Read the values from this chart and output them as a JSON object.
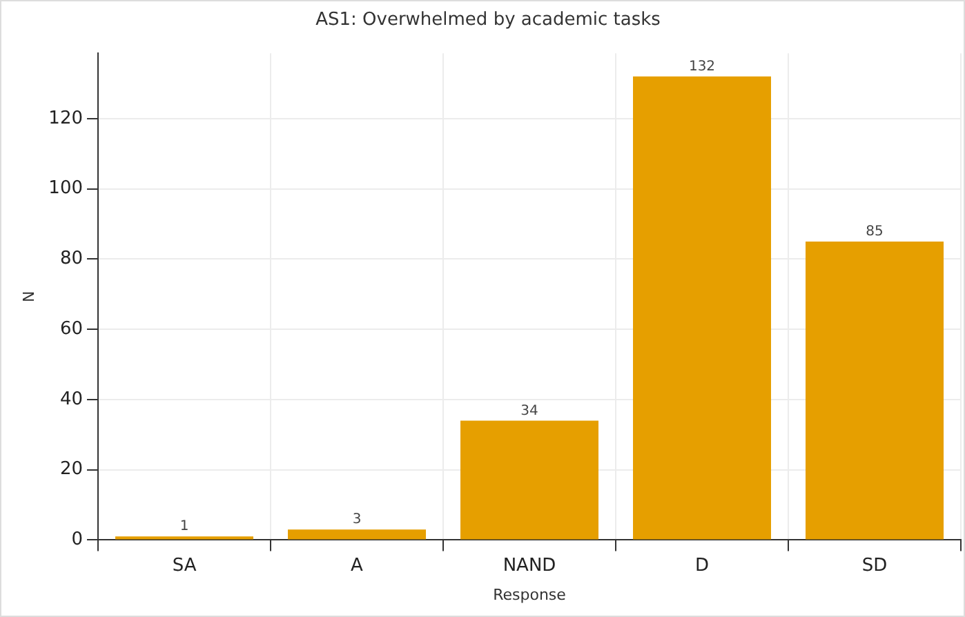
{
  "chart_data": {
    "type": "bar",
    "title": "AS1: Overwhelmed by academic tasks",
    "xlabel": "Response",
    "ylabel": "N",
    "categories": [
      "SA",
      "A",
      "NAND",
      "D",
      "SD"
    ],
    "values": [
      1,
      3,
      34,
      132,
      85
    ],
    "color": "#e69f00",
    "ylim": [
      0,
      138.6
    ],
    "yticks": [
      0,
      20,
      40,
      60,
      80,
      100,
      120
    ],
    "grid": true,
    "data_labels": true,
    "legend": false
  }
}
